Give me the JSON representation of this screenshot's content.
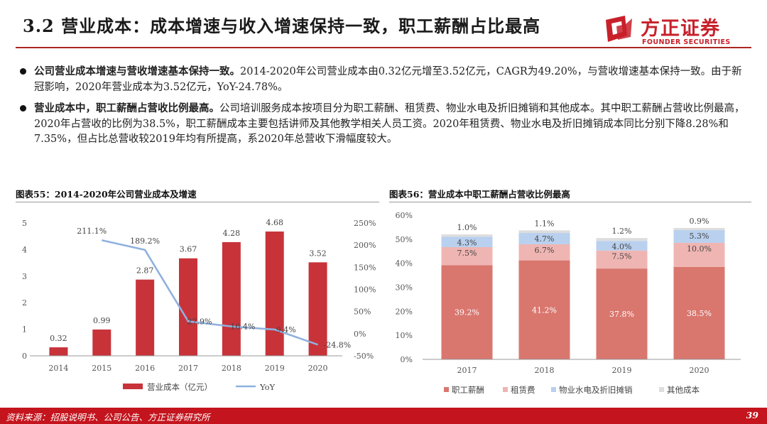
{
  "header": {
    "title": "3.2 营业成本：成本增速与收入增速保持一致，职工薪酬占比最高",
    "logo_cn": "方正证券",
    "logo_en": "FOUNDER SECURITIES"
  },
  "bullets": [
    {
      "lead": "公司营业成本增速与营收增速基本保持一致。",
      "text": "2014-2020年公司营业成本由0.32亿元增至3.52亿元，CAGR为49.20%，与营收增速基本保持一致。由于新冠影响，2020年营业成本为3.52亿元，YoY-24.78%。"
    },
    {
      "lead": "营业成本中，职工薪酬占营收比例最高。",
      "text": "公司培训服务成本按项目分为职工薪酬、租赁费、物业水电及折旧摊销和其他成本。其中职工薪酬占营收比例最高，2020年占营收的比例为38.5%，职工薪酬成本主要包括讲师及其他教学相关人员工资。2020年租赁费、物业水电及折旧摊销成本同比分别下降8.28%和7.35%，但占比总营收较2019年均有所提高，系2020年总营收下滑幅度较大。"
    }
  ],
  "figures": {
    "left_title": "图表55：2014-2020年公司营业成本及增速",
    "right_title": "图表56：营业成本中职工薪酬占营收比例最高"
  },
  "chart_data": [
    {
      "type": "bar",
      "categories": [
        "2014",
        "2015",
        "2016",
        "2017",
        "2018",
        "2019",
        "2020"
      ],
      "series": [
        {
          "name": "营业成本（亿元）",
          "type": "bar",
          "axis": "left",
          "values": [
            0.32,
            0.99,
            2.87,
            3.67,
            4.28,
            4.68,
            3.52
          ],
          "labels": [
            "0.32",
            "0.99",
            "2.87",
            "3.67",
            "4.28",
            "4.68",
            "3.52"
          ],
          "color": "#c8333a"
        },
        {
          "name": "YoY",
          "type": "line",
          "axis": "right",
          "x": [
            "2015",
            "2016",
            "2017",
            "2018",
            "2019",
            "2020"
          ],
          "values": [
            211.1,
            189.2,
            27.9,
            16.4,
            9.4,
            -24.8
          ],
          "labels": [
            "211.1%",
            "189.2%",
            "27.9%",
            "16.4%",
            "9.4%",
            "-24.8%"
          ],
          "color": "#8fb1de"
        }
      ],
      "left_axis": {
        "ylim": [
          0,
          5
        ],
        "ticks": [
          "0",
          "1",
          "2",
          "3",
          "4",
          "5"
        ]
      },
      "right_axis": {
        "ylim": [
          -50,
          250
        ],
        "ticks": [
          "-50%",
          "0%",
          "50%",
          "100%",
          "150%",
          "200%",
          "250%"
        ]
      },
      "grid": false,
      "legend": "bottom"
    },
    {
      "type": "bar",
      "stacked": true,
      "categories": [
        "2017",
        "2018",
        "2019",
        "2020"
      ],
      "series": [
        {
          "name": "职工薪酬",
          "values": [
            39.2,
            41.2,
            37.8,
            38.5
          ],
          "labels": [
            "39.2%",
            "41.2%",
            "37.8%",
            "38.5%"
          ],
          "color": "#d9776f"
        },
        {
          "name": "租赁费",
          "values": [
            7.5,
            6.7,
            7.5,
            10.0
          ],
          "labels": [
            "7.5%",
            "6.7%",
            "7.5%",
            "10.0%"
          ],
          "color": "#efb5b2"
        },
        {
          "name": "物业水电及折旧摊销",
          "values": [
            4.3,
            4.7,
            4.0,
            5.3
          ],
          "labels": [
            "4.3%",
            "4.7%",
            "4.0%",
            "5.3%"
          ],
          "color": "#b9d0ee"
        },
        {
          "name": "其他成本",
          "values": [
            1.0,
            1.1,
            1.2,
            0.9
          ],
          "labels": [
            "1.0%",
            "1.1%",
            "1.2%",
            "0.9%"
          ],
          "color": "#dddddd"
        }
      ],
      "y_axis": {
        "ylim": [
          0,
          60
        ],
        "ticks": [
          "0%",
          "10%",
          "20%",
          "30%",
          "40%",
          "50%",
          "60%"
        ]
      },
      "grid": false,
      "legend": "bottom"
    }
  ],
  "footer": {
    "source": "资料来源：招股说明书、公司公告、方正证券研究所",
    "page": "39"
  },
  "colors": {
    "brand_red": "#c4141d",
    "title_rule": "#a82820"
  }
}
